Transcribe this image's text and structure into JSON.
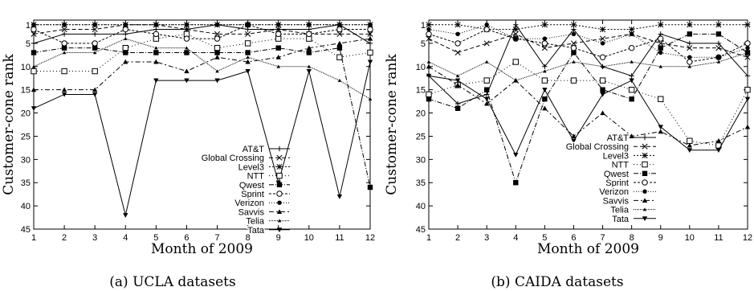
{
  "figure": {
    "captions": [
      "(a) UCLA datasets",
      "(b) CAIDA datasets"
    ]
  },
  "chart_data": [
    {
      "type": "line",
      "caption": "(a) UCLA datasets",
      "xlabel": "Month of 2009",
      "ylabel": "Customer-cone rank",
      "xlim": [
        1,
        12
      ],
      "ylim": [
        45,
        0
      ],
      "y_inverted": true,
      "xticks": [
        1,
        2,
        3,
        4,
        5,
        6,
        7,
        8,
        9,
        10,
        11,
        12
      ],
      "yticks": [
        1,
        5,
        10,
        15,
        20,
        25,
        30,
        35,
        40,
        45
      ],
      "legend_position": "center-right",
      "x": [
        1,
        2,
        3,
        4,
        5,
        6,
        7,
        8,
        9,
        10,
        11,
        12
      ],
      "series": [
        {
          "name": "AT&T",
          "marker": "plus",
          "dash": "none",
          "values": [
            5,
            3,
            3,
            3,
            2,
            2,
            1,
            2,
            2,
            2,
            1,
            5
          ]
        },
        {
          "name": "Global Crossing",
          "marker": "cross",
          "dash": "5,3",
          "values": [
            3,
            2,
            2,
            1,
            1,
            2,
            3,
            3,
            2,
            3,
            3,
            3
          ]
        },
        {
          "name": "Level3",
          "marker": "star",
          "dash": "2,2",
          "values": [
            1,
            1,
            1,
            1,
            1,
            1,
            1,
            1,
            1,
            1,
            1,
            1
          ]
        },
        {
          "name": "NTT",
          "marker": "square-open",
          "dash": "1,3",
          "values": [
            11,
            11,
            11,
            6,
            4,
            3,
            6,
            5,
            4,
            4,
            8,
            7
          ]
        },
        {
          "name": "Qwest",
          "marker": "square",
          "dash": "6,2,1,2",
          "values": [
            7,
            6,
            6,
            7,
            7,
            7,
            7,
            7,
            6,
            7,
            6,
            36
          ]
        },
        {
          "name": "Sprint",
          "marker": "circle-open",
          "dash": "3,2",
          "values": [
            2,
            5,
            5,
            2,
            3,
            4,
            4,
            1,
            3,
            3,
            2,
            2
          ]
        },
        {
          "name": "Verizon",
          "marker": "circle",
          "dash": "1,2",
          "values": [
            1,
            1,
            1,
            1,
            1,
            1,
            1,
            1,
            1,
            1,
            1,
            1
          ]
        },
        {
          "name": "Savvis",
          "marker": "triangle",
          "dash": "6,3,2,3",
          "values": [
            15,
            15,
            15,
            9,
            9,
            11,
            8,
            9,
            8,
            6,
            5,
            4
          ]
        },
        {
          "name": "Telia",
          "marker": "triangle-small",
          "dash": "1,1",
          "values": [
            10,
            7,
            7,
            4,
            6,
            6,
            11,
            8,
            10,
            10,
            13,
            17
          ]
        },
        {
          "name": "Tata",
          "marker": "triangle-down",
          "dash": "none",
          "values": [
            19,
            16,
            16,
            42,
            13,
            13,
            13,
            11,
            35,
            11,
            38,
            9
          ]
        }
      ]
    },
    {
      "type": "line",
      "caption": "(b) CAIDA datasets",
      "xlabel": "Month of 2009",
      "ylabel": "Customer-cone rank",
      "xlim": [
        1,
        12
      ],
      "ylim": [
        45,
        0
      ],
      "y_inverted": true,
      "xticks": [
        1,
        2,
        3,
        4,
        5,
        6,
        7,
        8,
        9,
        10,
        11,
        12
      ],
      "yticks": [
        1,
        5,
        10,
        15,
        20,
        25,
        30,
        35,
        40,
        45
      ],
      "legend_position": "bottom-right",
      "x": [
        1,
        2,
        3,
        4,
        5,
        6,
        7,
        8,
        9,
        10,
        11,
        12
      ],
      "series": [
        {
          "name": "AT&T",
          "marker": "plus",
          "dash": "none",
          "values": [
            12,
            18,
            16,
            1,
            10,
            2,
            10,
            12,
            3,
            5,
            5,
            12
          ]
        },
        {
          "name": "Global Crossing",
          "marker": "cross",
          "dash": "5,3",
          "values": [
            4,
            7,
            5,
            3,
            6,
            5,
            4,
            3,
            5,
            6,
            6,
            8
          ]
        },
        {
          "name": "Level3",
          "marker": "star",
          "dash": "2,2",
          "values": [
            1,
            1,
            2,
            2,
            1,
            1,
            2,
            2,
            1,
            1,
            1,
            1
          ]
        },
        {
          "name": "NTT",
          "marker": "square-open",
          "dash": "1,3",
          "values": [
            16,
            14,
            13,
            9,
            13,
            13,
            13,
            15,
            17,
            26,
            27,
            15
          ]
        },
        {
          "name": "Qwest",
          "marker": "square",
          "dash": "6,2,1,2",
          "values": [
            17,
            19,
            15,
            35,
            17,
            7,
            15,
            17,
            6,
            3,
            3,
            7
          ]
        },
        {
          "name": "Sprint",
          "marker": "circle-open",
          "dash": "3,2",
          "values": [
            3,
            5,
            2,
            4,
            5,
            6,
            8,
            6,
            4,
            9,
            8,
            5
          ]
        },
        {
          "name": "Verizon",
          "marker": "circle",
          "dash": "1,2",
          "values": [
            2,
            3,
            1,
            4,
            4,
            3,
            5,
            3,
            7,
            8,
            8,
            6
          ]
        },
        {
          "name": "Savvis",
          "marker": "triangle",
          "dash": "6,3,2,3",
          "values": [
            10,
            14,
            18,
            13,
            19,
            25,
            20,
            25,
            24,
            27,
            26,
            23
          ]
        },
        {
          "name": "Telia",
          "marker": "triangle-small",
          "dash": "1,1",
          "values": [
            9,
            12,
            9,
            13,
            11,
            9,
            10,
            9,
            10,
            10,
            9,
            7
          ]
        },
        {
          "name": "Tata",
          "marker": "triangle-down",
          "dash": "none",
          "values": [
            12,
            13,
            17,
            29,
            15,
            26,
            16,
            13,
            23,
            28,
            28,
            17
          ]
        }
      ]
    }
  ]
}
